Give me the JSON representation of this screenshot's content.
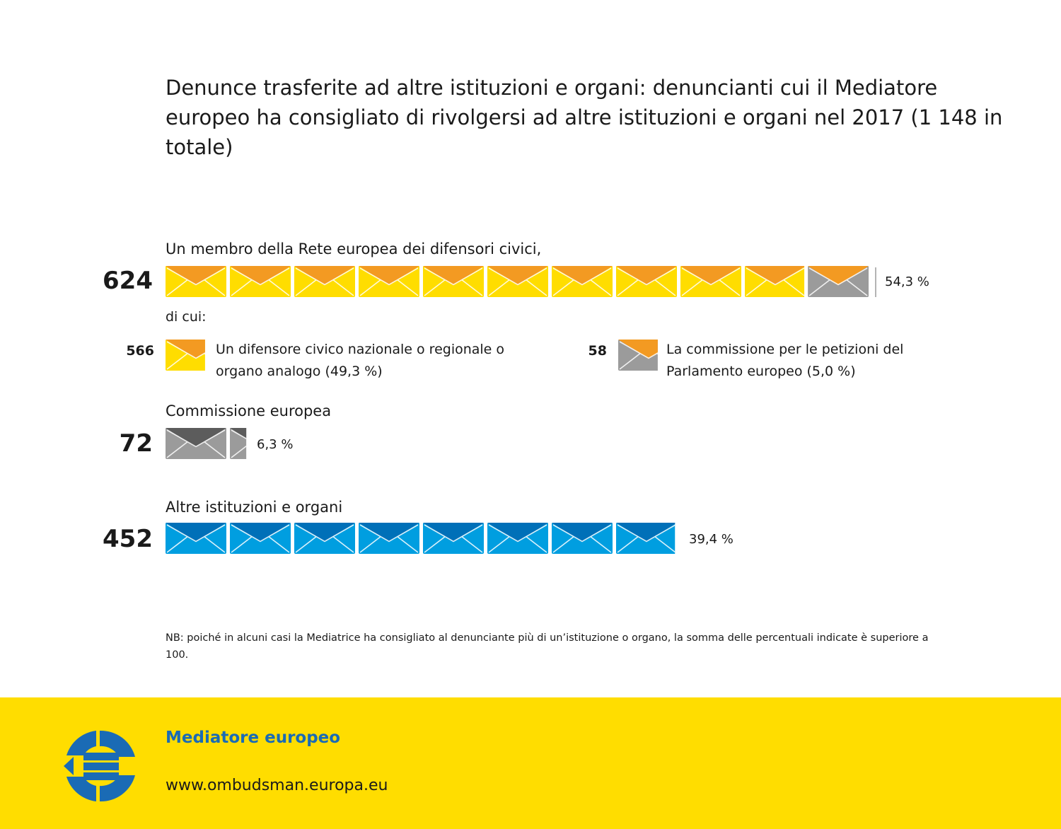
{
  "title": "Denunce trasferite ad altre istituzioni e organi: denuncianti cui il Mediatore europeo ha consigliato di rivolgersi ad altre istituzioni e organi nel 2017 (1 148 in totale)",
  "chart_data": {
    "type": "bar",
    "title": "Denunce trasferite ad altre istituzioni e organi: denuncianti cui il Mediatore europeo ha consigliato di rivolgersi ad altre istituzioni e organi nel 2017 (1 148 in totale)",
    "total": 1148,
    "categories": [
      "Un membro della Rete europea dei difensori civici,",
      "Commissione europea",
      "Altre istituzioni e organi"
    ],
    "values": [
      624,
      72,
      452
    ],
    "percentages": [
      "54,3 %",
      "6,3 %",
      "39,4 %"
    ],
    "breakdown_label": "di cui:",
    "breakdown": [
      {
        "value": 566,
        "label": "Un difensore civico nazionale o regionale o organo analogo (49,3 %)"
      },
      {
        "value": 58,
        "label": "La commissione per le petizioni del Parlamento europeo (5,0 %)"
      }
    ],
    "colors": {
      "network_national": {
        "body": "#ffdd00",
        "flap": "#f39a22"
      },
      "network_petitions": {
        "body": "#9b9b9b",
        "flap": "#f39a22"
      },
      "commission": {
        "body": "#9b9b9b",
        "flap": "#5c5c5c"
      },
      "other": {
        "body": "#009ee0",
        "flap": "#0070b8"
      }
    }
  },
  "note": "NB: poiché in alcuni casi la Mediatrice ha consigliato al denunciante più di un’istituzione o organo, la somma delle percentuali indicate è superiore a 100.",
  "footer": {
    "brand": "Mediatore europeo",
    "url": "www.ombudsman.europa.eu",
    "background": "#ffdd00",
    "brand_color": "#1a6bb5"
  }
}
